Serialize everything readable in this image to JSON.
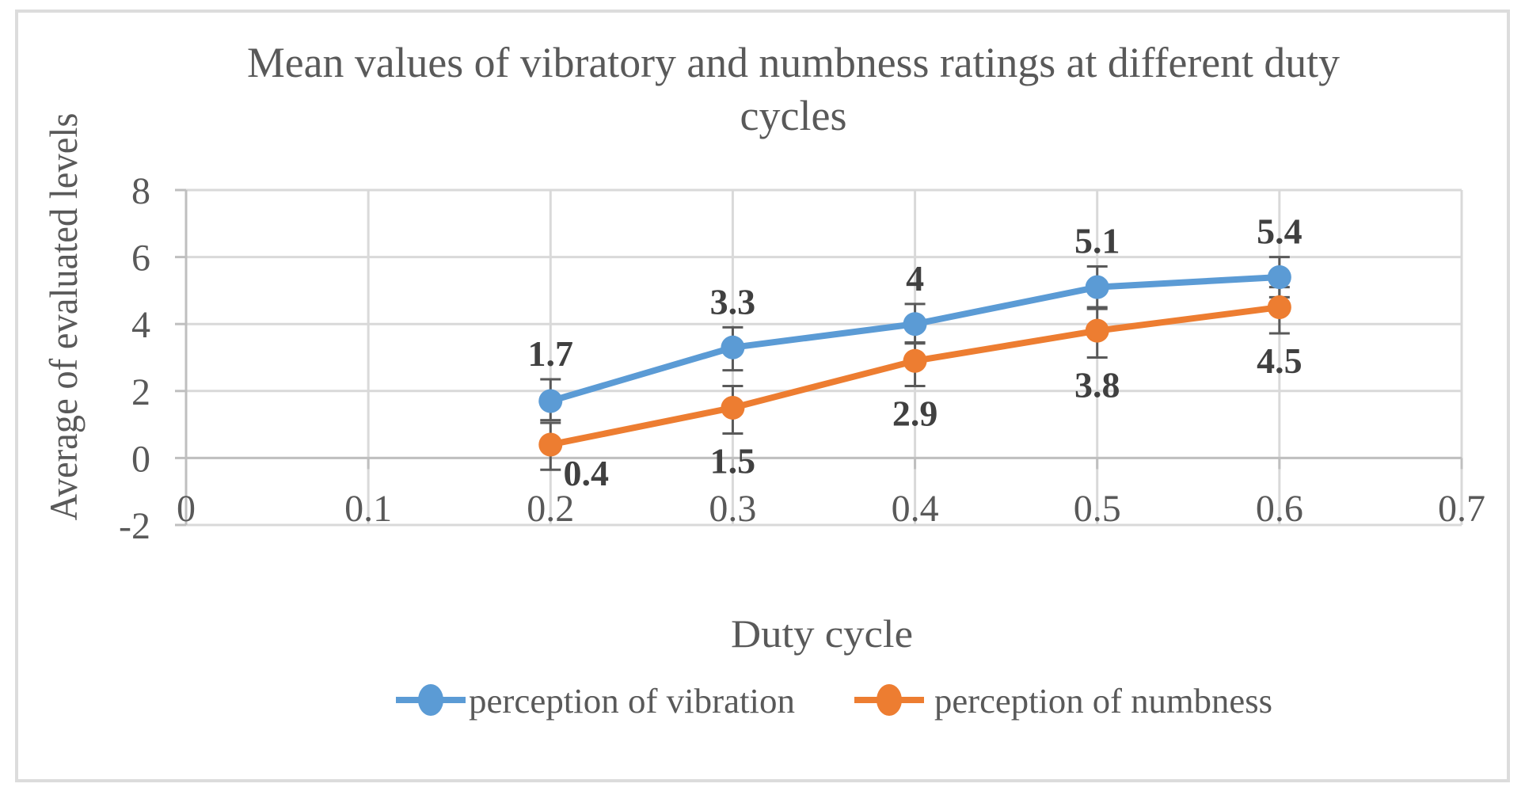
{
  "chart_data": {
    "type": "line",
    "title": "Mean values of vibratory and numbness ratings at different duty cycles",
    "title_lines": [
      "Mean values of vibratory and numbness ratings at different duty",
      "cycles"
    ],
    "xlabel": "Duty cycle",
    "ylabel": "Average of evaluated levels",
    "x": [
      0.2,
      0.3,
      0.4,
      0.5,
      0.6
    ],
    "series": [
      {
        "name": "perception of vibration",
        "color": "#5B9BD5",
        "values": [
          1.7,
          3.3,
          4,
          5.1,
          5.4
        ],
        "data_labels": [
          "1.7",
          "3.3",
          "4",
          "5.1",
          "5.4"
        ],
        "label_position": "above",
        "error_plus": [
          0.65,
          0.6,
          0.6,
          0.62,
          0.6
        ],
        "error_minus": [
          0.57,
          0.68,
          0.58,
          0.6,
          0.6
        ]
      },
      {
        "name": "perception of numbness",
        "color": "#ED7D31",
        "values": [
          0.4,
          1.5,
          2.9,
          3.8,
          4.5
        ],
        "data_labels": [
          "0.4",
          "1.5",
          "2.9",
          "3.8",
          "4.5"
        ],
        "label_position": "below",
        "error_plus": [
          0.65,
          0.65,
          0.55,
          0.65,
          0.6
        ],
        "error_minus": [
          0.75,
          0.77,
          0.75,
          0.8,
          0.78
        ],
        "label_dx": [
          45,
          0,
          0,
          0,
          0
        ],
        "label_dy": [
          -30,
          0,
          0,
          0,
          0
        ]
      }
    ],
    "x_ticks": [
      "0",
      "0.1",
      "0.2",
      "0.3",
      "0.4",
      "0.5",
      "0.6",
      "0.7"
    ],
    "x_tick_values": [
      0,
      0.1,
      0.2,
      0.3,
      0.4,
      0.5,
      0.6,
      0.7
    ],
    "y_ticks": [
      "8",
      "6",
      "4",
      "2",
      "0",
      "-2"
    ],
    "y_tick_values": [
      8,
      6,
      4,
      2,
      0,
      -2
    ],
    "xlim": [
      0,
      0.7
    ],
    "ylim": [
      -2,
      8
    ],
    "grid": true,
    "legend_position": "bottom",
    "colors": {
      "gridline": "#D9D9D9",
      "axis_line": "#BFBFBF",
      "error_bar": "#595959",
      "text": "#595959",
      "data_label": "#404040",
      "frame_border": "#DCDCDC",
      "background": "#FFFFFF"
    }
  }
}
